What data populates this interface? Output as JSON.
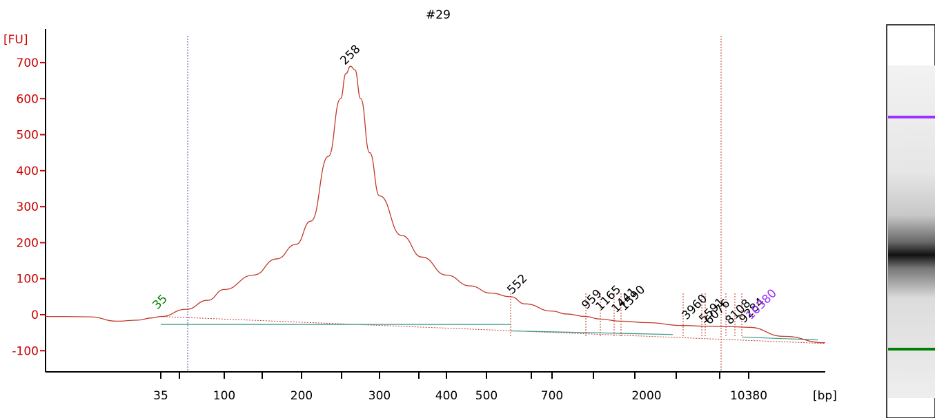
{
  "chart_data": {
    "type": "line",
    "title": "#29",
    "y_unit": "[FU]",
    "x_unit": "[bp]",
    "ylim": [
      -160,
      760
    ],
    "y_ticks": [
      700,
      600,
      500,
      400,
      300,
      200,
      100,
      0,
      -100
    ],
    "y_tick_labels": [
      "700",
      "600",
      "500",
      "400",
      "300",
      "200",
      "100",
      "0",
      "-100"
    ],
    "x_tick_labels": [
      "35",
      "100",
      "200",
      "300",
      "400",
      "500",
      "700",
      "2000",
      "10380"
    ],
    "x_scale": "electropherogram (non-linear bp)",
    "grid": false,
    "markers": [
      {
        "label": "35",
        "color": "#008000",
        "marker": "lower"
      },
      {
        "label": "10380",
        "color": "#9b30ff",
        "marker": "upper"
      }
    ],
    "peak_labels": [
      "258",
      "552",
      "959",
      "1165",
      "1441",
      "1590",
      "3960",
      "5591",
      "6076",
      "8108",
      "9284"
    ],
    "series": [
      {
        "color": "#c0392b",
        "x_bp": [
          35,
          60,
          80,
          100,
          130,
          160,
          190,
          210,
          230,
          245,
          252,
          258,
          264,
          272,
          285,
          300,
          330,
          360,
          400,
          450,
          500,
          552,
          600,
          700,
          800,
          959,
          1165,
          1590,
          2000,
          3960,
          6076,
          8108,
          10380,
          13000,
          17000
        ],
        "values": [
          -5,
          15,
          40,
          70,
          110,
          155,
          195,
          260,
          440,
          600,
          670,
          690,
          680,
          600,
          450,
          330,
          220,
          160,
          110,
          80,
          60,
          50,
          30,
          10,
          2,
          -5,
          -12,
          -18,
          -22,
          -30,
          -32,
          -33,
          -35,
          -60,
          -78
        ]
      }
    ]
  },
  "gel": {
    "upper_marker_color": "#9b30ff",
    "lower_marker_color": "#008000"
  }
}
